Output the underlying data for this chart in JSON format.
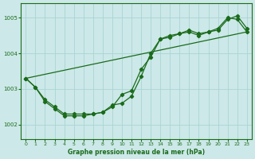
{
  "title": "Graphe pression niveau de la mer (hPa)",
  "bg_color": "#cce8e8",
  "line_color": "#1a6b1a",
  "grid_color": "#aad4d4",
  "ylim": [
    1001.6,
    1005.4
  ],
  "xlim": [
    -0.5,
    23.5
  ],
  "yticks": [
    1002,
    1003,
    1004,
    1005
  ],
  "xticks": [
    0,
    1,
    2,
    3,
    4,
    5,
    6,
    7,
    8,
    9,
    10,
    11,
    12,
    13,
    14,
    15,
    16,
    17,
    18,
    19,
    20,
    21,
    22,
    23
  ],
  "series1_x": [
    0,
    1,
    2,
    3,
    4,
    5,
    6,
    7,
    8,
    9,
    10,
    11,
    12,
    13,
    14,
    15,
    16,
    17,
    18,
    19,
    20,
    21,
    22,
    23
  ],
  "series1_y": [
    1003.3,
    1003.05,
    1002.65,
    1002.45,
    1002.25,
    1002.25,
    1002.25,
    1002.3,
    1002.35,
    1002.5,
    1002.85,
    1002.95,
    1003.55,
    1003.9,
    1004.4,
    1004.45,
    1004.55,
    1004.6,
    1004.5,
    1004.6,
    1004.65,
    1004.95,
    1005.05,
    1004.7
  ],
  "series2_x": [
    0,
    1,
    2,
    3,
    4,
    5,
    6,
    7,
    8,
    9,
    10,
    11,
    12,
    13,
    14,
    15,
    16,
    17,
    18,
    19,
    20,
    21,
    22,
    23
  ],
  "series2_y": [
    1003.3,
    1003.05,
    1002.7,
    1002.5,
    1002.3,
    1002.3,
    1002.3,
    1002.3,
    1002.35,
    1002.55,
    1002.6,
    1002.8,
    1003.35,
    1004.0,
    1004.4,
    1004.5,
    1004.55,
    1004.65,
    1004.55,
    1004.6,
    1004.7,
    1005.0,
    1004.95,
    1004.6
  ],
  "trend_x": [
    0,
    23
  ],
  "trend_y": [
    1003.3,
    1004.6
  ]
}
